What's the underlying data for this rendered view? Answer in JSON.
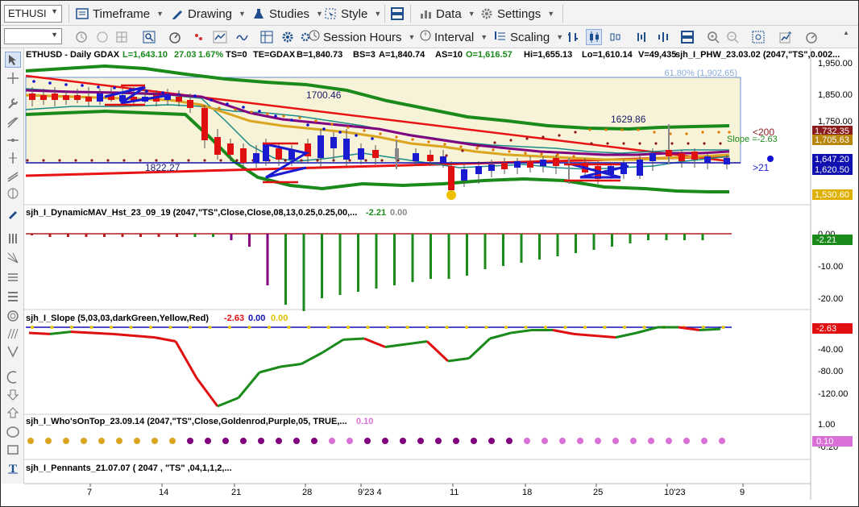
{
  "toolbar": {
    "symbol": "ETHUSI",
    "menus": [
      {
        "label": "Timeframe",
        "icon": "timeframe-icon"
      },
      {
        "label": "Drawing",
        "icon": "pencil-icon"
      },
      {
        "label": "Studies",
        "icon": "flask-icon"
      },
      {
        "label": "Style",
        "icon": "style-icon"
      },
      {
        "label": "Data",
        "icon": "data-icon"
      },
      {
        "label": "Settings",
        "icon": "gear-icon"
      }
    ],
    "row2": {
      "session_hours": "Session Hours",
      "interval": "Interval",
      "scaling": "Scaling"
    }
  },
  "main_chart": {
    "header": {
      "symbol": "ETHUSD - Daily GDAX",
      "L": "L=1,643.10",
      "chg": "27.03",
      "pct": "1.67%",
      "ts": "TS=0",
      "te": "TE=GDAX",
      "b": "B=1,840.73",
      "bs": "BS=3",
      "a": "A=1,840.74",
      "as": "AS=10",
      "o": "O=1,616.57",
      "hi": "Hi=1,655.13",
      "lo": "Lo=1,610.14",
      "v": "V=49,435",
      "study": "sjh_I_PHW_23.03.02 (2047,\"TS\",0.002..."
    },
    "annotations": {
      "fib": "61.80% (1,902.65)",
      "p1700": "1700.46",
      "p1629": "1629.86",
      "p1822": "1822.27",
      "lt200": "<200",
      "gt21": ">21",
      "slope": "Slope =-2.63"
    },
    "axis_ticks": [
      "1,950.00",
      "1,850.00",
      "1,750.00"
    ],
    "price_tags": [
      {
        "text": "1,732.35",
        "color": "#8b1a1a"
      },
      {
        "text": "1,705.63",
        "color": "#b8860b"
      },
      {
        "text": "1,647.20",
        "color": "#1010b0"
      },
      {
        "text": "1,620.50",
        "color": "#1010b0"
      },
      {
        "text": "1,530.60",
        "color": "#e0b000"
      }
    ]
  },
  "panels": {
    "dmav": {
      "title": "sjh_I_DynamicMAV_Hst_23_09_19 (2047,\"TS\",Close,Close,08,13,0.25,0.25,00,...",
      "v1": "-2.21",
      "v2": "0.00",
      "ticks": [
        "0.00",
        "-10.00",
        "-20.00"
      ],
      "tag": "-2.21"
    },
    "slope": {
      "title": "sjh_I_Slope (5,03,03,darkGreen,Yellow,Red)",
      "v1": "-2.63",
      "v2": "0.00",
      "v3": "0.00",
      "ticks": [
        "-40.00",
        "-80.00",
        "-120.00"
      ],
      "tag": "-2.63"
    },
    "who": {
      "title": "sjh_I_Who'sOnTop_23.09.14 (2047,\"TS\",Close,Goldenrod,Purple,05,  TRUE,...",
      "v1": "0.10",
      "ticks": [
        "1.00",
        "-0.20"
      ],
      "tag": "0.10"
    },
    "pennants": {
      "title": "sjh_I_Pennants_21.07.07 (  2047 ,  \"TS\" ,04,1,1,2,..."
    }
  },
  "x_axis": [
    "7",
    "14",
    "21",
    "28",
    "9'23 4",
    "11",
    "18",
    "25",
    "10'23",
    "9"
  ],
  "colors": {
    "up_bar": "#1a1ad0",
    "down_bar": "#e01010",
    "green_band": "#1a8a1a",
    "red_line": "#e81414",
    "purple": "#800080",
    "goldenrod": "#daa520",
    "teal": "#1a8a8a",
    "fib_fill": "#f7f3d8"
  },
  "chart_data": [
    {
      "type": "bar",
      "title": "sjh_I_DynamicMAV_Hst_23_09_19",
      "values": [
        0,
        -1,
        -1,
        -1,
        -1,
        -1,
        -1,
        -1,
        -1,
        -1,
        -1,
        -2,
        -4,
        -16,
        -22,
        -24,
        -20,
        -19,
        -18,
        -17,
        -16,
        -15,
        -14,
        -14,
        -13,
        -11,
        -10,
        -9,
        -8,
        -7,
        -6,
        -5,
        -4,
        -3,
        -2,
        -2,
        -2,
        -2
      ]
    },
    {
      "type": "line",
      "title": "sjh_I_Slope",
      "values": [
        -10,
        -12,
        -8,
        -10,
        -12,
        -15,
        -18,
        -25,
        -90,
        -140,
        -125,
        -80,
        -70,
        -65,
        -45,
        -22,
        -20,
        -35,
        -30,
        -25,
        -60,
        -55,
        -20,
        -10,
        -5,
        -5,
        -12,
        -15,
        -18,
        -10,
        0,
        0,
        -5,
        -3
      ]
    }
  ]
}
